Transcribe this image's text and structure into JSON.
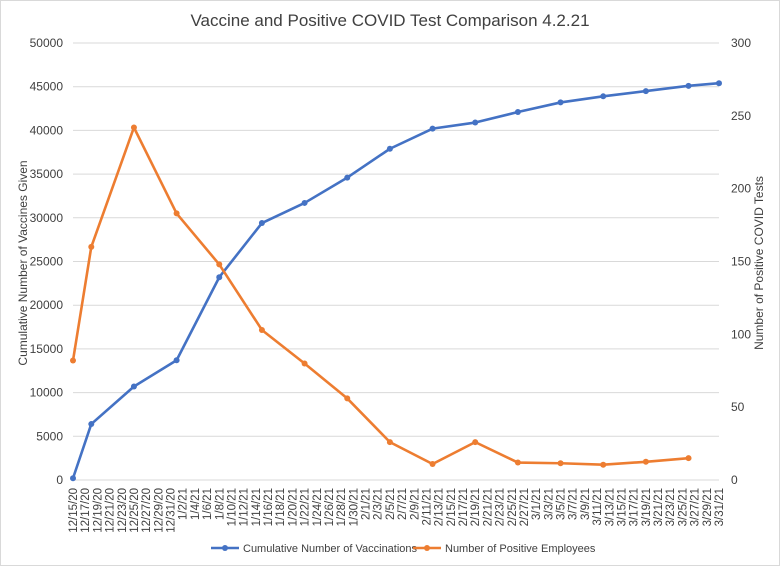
{
  "chart_data": {
    "type": "line",
    "title": "Vaccine and Positive COVID Test Comparison 4.2.21",
    "ylabel_left": "Cumulative Number of Vaccines Given",
    "ylabel_right": "Number of Positive COVID Tests",
    "ylim_left": [
      0,
      50000
    ],
    "ylim_right": [
      0,
      300
    ],
    "yticks_left": [
      "0",
      "5000",
      "10000",
      "15000",
      "20000",
      "25000",
      "30000",
      "35000",
      "40000",
      "45000",
      "50000"
    ],
    "yticks_right": [
      "0",
      "50",
      "100",
      "150",
      "200",
      "250",
      "300"
    ],
    "grid": true,
    "legend_position": "bottom",
    "x": [
      "12/15/20",
      "12/17/20",
      "12/19/20",
      "12/21/20",
      "12/23/20",
      "12/25/20",
      "12/27/20",
      "12/29/20",
      "12/31/20",
      "1/2/21",
      "1/4/21",
      "1/6/21",
      "1/8/21",
      "1/10/21",
      "1/12/21",
      "1/14/21",
      "1/16/21",
      "1/18/21",
      "1/20/21",
      "1/22/21",
      "1/24/21",
      "1/26/21",
      "1/28/21",
      "1/30/21",
      "2/1/21",
      "2/3/21",
      "2/5/21",
      "2/7/21",
      "2/9/21",
      "2/11/21",
      "2/13/21",
      "2/15/21",
      "2/17/21",
      "2/19/21",
      "2/21/21",
      "2/23/21",
      "2/25/21",
      "2/27/21",
      "3/1/21",
      "3/3/21",
      "3/5/21",
      "3/7/21",
      "3/9/21",
      "3/11/21",
      "3/13/21",
      "3/15/21",
      "3/17/21",
      "3/19/21",
      "3/21/21",
      "3/23/21",
      "3/25/21",
      "3/27/21",
      "3/29/21",
      "3/31/21"
    ],
    "series": [
      {
        "name": "Cumulative Number of Vaccinations",
        "axis": "left",
        "color": "#4472c4",
        "points": [
          [
            "12/15/20",
            200
          ],
          [
            "12/18/20",
            6400
          ],
          [
            "12/25/20",
            10700
          ],
          [
            "1/1/21",
            13700
          ],
          [
            "1/8/21",
            23200
          ],
          [
            "1/15/21",
            29400
          ],
          [
            "1/22/21",
            31700
          ],
          [
            "1/29/21",
            34600
          ],
          [
            "2/5/21",
            37900
          ],
          [
            "2/12/21",
            40200
          ],
          [
            "2/19/21",
            40900
          ],
          [
            "2/26/21",
            42100
          ],
          [
            "3/5/21",
            43200
          ],
          [
            "3/12/21",
            43900
          ],
          [
            "3/19/21",
            44500
          ],
          [
            "3/26/21",
            45100
          ],
          [
            "3/31/21",
            45400
          ]
        ]
      },
      {
        "name": "Number of Positive Employees",
        "axis": "right",
        "color": "#ed7d31",
        "points": [
          [
            "12/15/20",
            82
          ],
          [
            "12/18/20",
            160
          ],
          [
            "12/25/20",
            242
          ],
          [
            "1/1/21",
            183
          ],
          [
            "1/8/21",
            148
          ],
          [
            "1/15/21",
            103
          ],
          [
            "1/22/21",
            80
          ],
          [
            "1/29/21",
            56
          ],
          [
            "2/5/21",
            26
          ],
          [
            "2/12/21",
            11
          ],
          [
            "2/19/21",
            26
          ],
          [
            "2/26/21",
            12
          ],
          [
            "3/5/21",
            11.5
          ],
          [
            "3/12/21",
            10.5
          ],
          [
            "3/19/21",
            12.5
          ],
          [
            "3/26/21",
            15
          ]
        ]
      }
    ]
  }
}
